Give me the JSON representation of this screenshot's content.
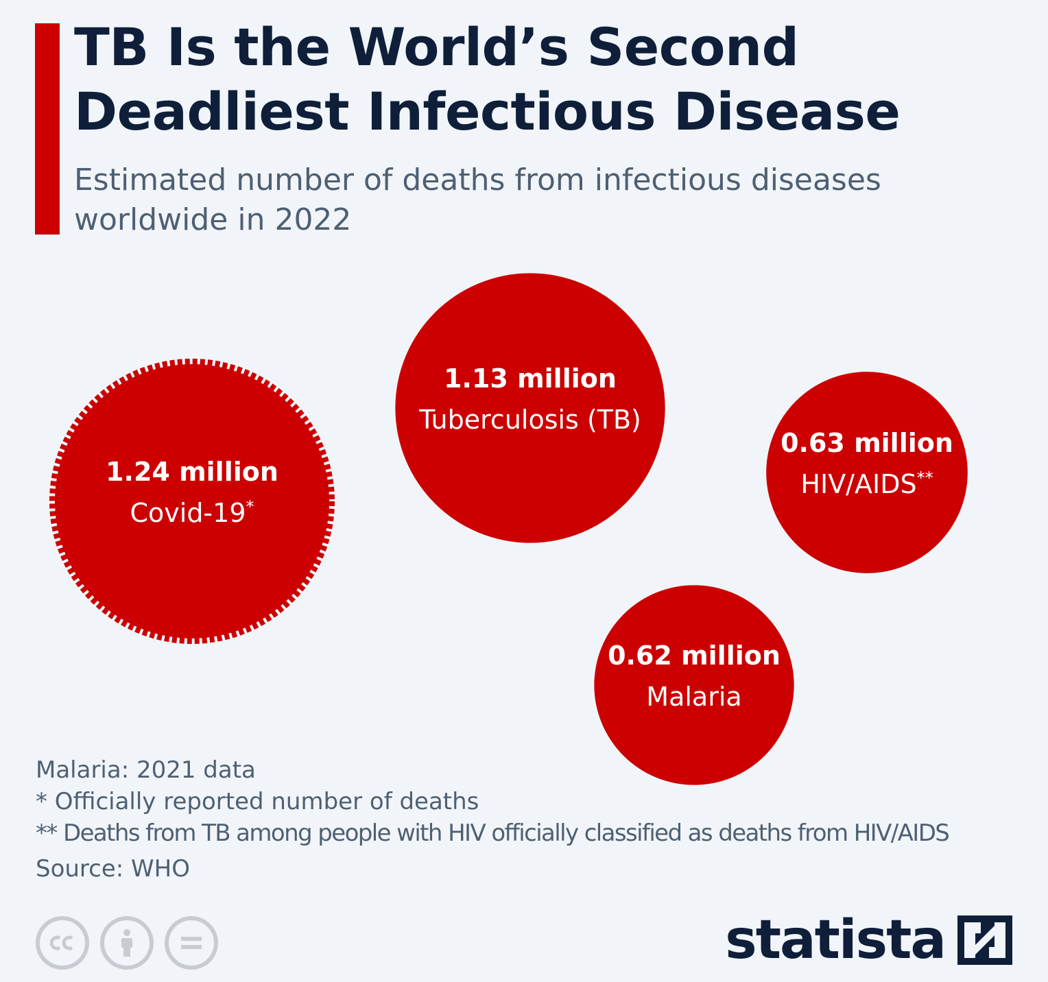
{
  "header": {
    "title_line1": "TB Is the World’s Second",
    "title_line2": "Deadliest Infectious Disease",
    "subtitle_line1": "Estimated number of deaths from infectious diseases",
    "subtitle_line2": "worldwide in 2022"
  },
  "chart_data": {
    "type": "bubble",
    "title": "TB Is the World’s Second Deadliest Infectious Disease",
    "subtitle": "Estimated number of deaths from infectious diseases worldwide in 2022",
    "unit": "million deaths",
    "items": [
      {
        "label": "Covid-19",
        "marker": "*",
        "value": 1.24,
        "value_label": "1.24 million",
        "style": "dashed"
      },
      {
        "label": "Tuberculosis (TB)",
        "marker": "",
        "value": 1.13,
        "value_label": "1.13 million",
        "style": "solid"
      },
      {
        "label": "HIV/AIDS",
        "marker": "**",
        "value": 0.63,
        "value_label": "0.63 million",
        "style": "solid"
      },
      {
        "label": "Malaria",
        "marker": "",
        "value": 0.62,
        "value_label": "0.62 million",
        "style": "solid"
      }
    ],
    "color": "#cc0000"
  },
  "notes": {
    "line1": "Malaria: 2021 data",
    "line2": "*   Officially reported number of deaths",
    "line3": "** Deaths from TB among people with HIV officially classified as deaths from HIV/AIDS",
    "source": "Source: WHO"
  },
  "footer": {
    "brand": "statista",
    "licence_icons": [
      "cc-icon",
      "attribution-icon",
      "no-derivatives-icon"
    ]
  },
  "colors": {
    "accent": "#cc0000",
    "title": "#0f1f3a",
    "text": "#4f5f72",
    "background": "#f1f5f9"
  }
}
